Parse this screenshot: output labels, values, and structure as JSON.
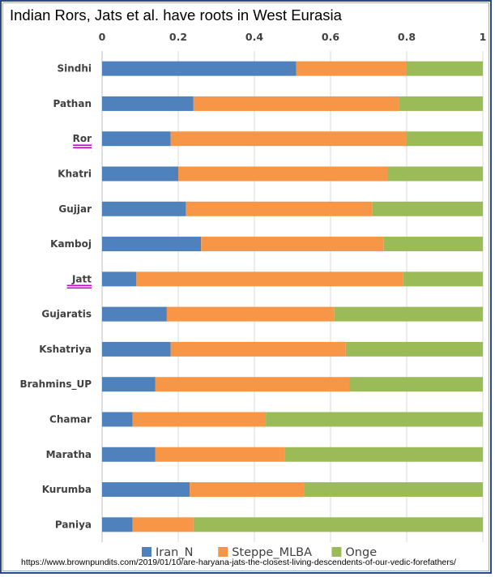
{
  "page": {
    "source_url": "https://www.brownpundits.com/2019/01/10/are-haryana-jats-the-closest-living-descendents-of-our-vedic-forefathers/"
  },
  "chart_data": {
    "type": "bar",
    "orientation": "horizontal",
    "stacked": true,
    "title": "Indian Rors, Jats et al. have roots in West Eurasia",
    "xlabel": "",
    "ylabel": "",
    "xlim": [
      0,
      1
    ],
    "x_ticks": [
      "0",
      "0.2",
      "0.4",
      "0.6",
      "0.8",
      "1"
    ],
    "x_tick_values": [
      0,
      0.2,
      0.4,
      0.6,
      0.8,
      1.0
    ],
    "grid": true,
    "legend_position": "bottom",
    "categories": [
      "Sindhi",
      "Pathan",
      "Ror",
      "Khatri",
      "Gujjar",
      "Kamboj",
      "Jatt",
      "Gujaratis",
      "Kshatriya",
      "Brahmins_UP",
      "Chamar",
      "Maratha",
      "Kurumba",
      "Paniya"
    ],
    "highlighted_categories": [
      "Ror",
      "Jatt"
    ],
    "highlight_color": "#cc00cc",
    "series": [
      {
        "name": "Iran_N",
        "color": "#4f81bd",
        "values": [
          0.51,
          0.24,
          0.18,
          0.2,
          0.22,
          0.26,
          0.09,
          0.17,
          0.18,
          0.14,
          0.08,
          0.14,
          0.23,
          0.08
        ]
      },
      {
        "name": "Steppe_MLBA",
        "color": "#f79646",
        "values": [
          0.29,
          0.54,
          0.62,
          0.55,
          0.49,
          0.48,
          0.7,
          0.44,
          0.46,
          0.51,
          0.35,
          0.34,
          0.3,
          0.16
        ]
      },
      {
        "name": "Onge",
        "color": "#9bbb59",
        "values": [
          0.2,
          0.22,
          0.2,
          0.25,
          0.29,
          0.26,
          0.21,
          0.39,
          0.36,
          0.35,
          0.57,
          0.52,
          0.47,
          0.76
        ]
      }
    ]
  }
}
